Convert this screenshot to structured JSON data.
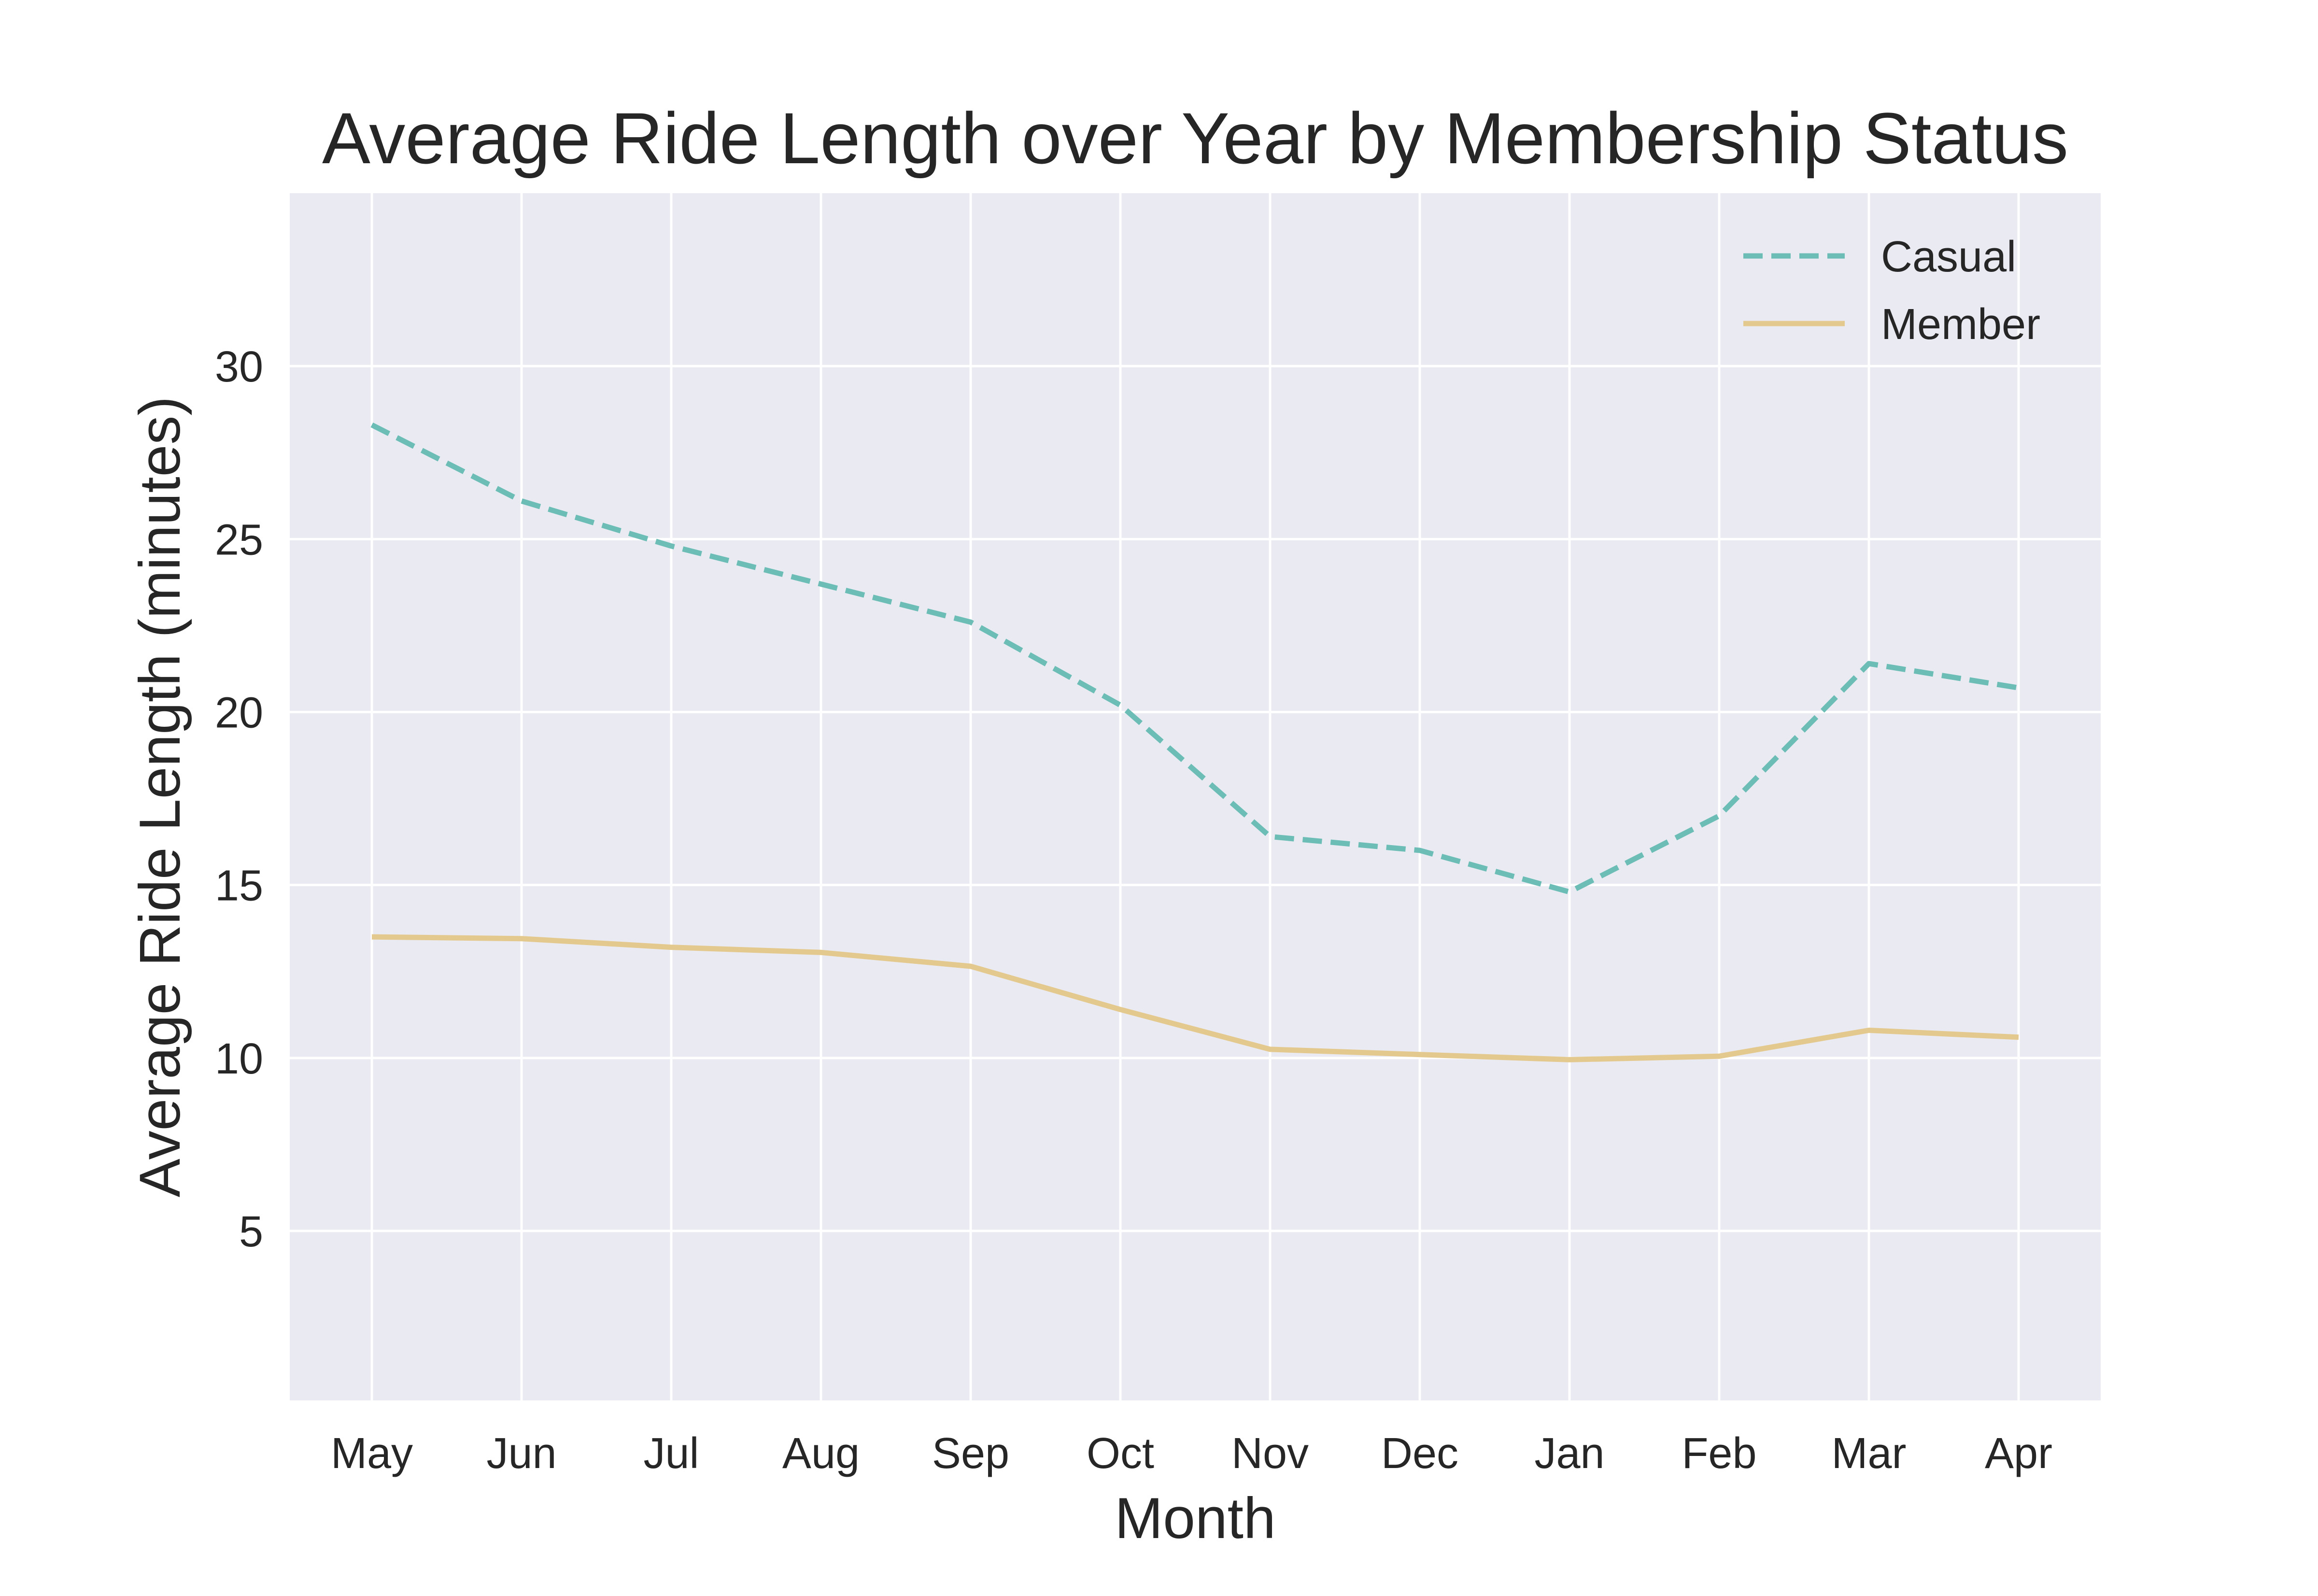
{
  "chart_data": {
    "type": "line",
    "title": "Average Ride Length over Year by Membership Status",
    "xlabel": "Month",
    "ylabel": "Average Ride Length (minutes)",
    "categories": [
      "May",
      "Jun",
      "Jul",
      "Aug",
      "Sep",
      "Oct",
      "Nov",
      "Dec",
      "Jan",
      "Feb",
      "Mar",
      "Apr"
    ],
    "yticks": [
      5,
      10,
      15,
      20,
      25,
      30
    ],
    "ylim": [
      0.1,
      35
    ],
    "grid": true,
    "legend_position": "top-right",
    "background": "#eaeaf2",
    "series": [
      {
        "name": "Casual",
        "color": "#6bbdb6",
        "style": "dashed",
        "values": [
          28.3,
          26.1,
          24.8,
          23.7,
          22.6,
          20.2,
          16.4,
          16.0,
          14.8,
          17.0,
          21.4,
          20.7
        ]
      },
      {
        "name": "Member",
        "color": "#e4c98e",
        "style": "solid",
        "values": [
          13.5,
          13.45,
          13.2,
          13.05,
          12.65,
          11.4,
          10.25,
          10.1,
          9.95,
          10.05,
          10.8,
          10.6
        ]
      }
    ]
  }
}
